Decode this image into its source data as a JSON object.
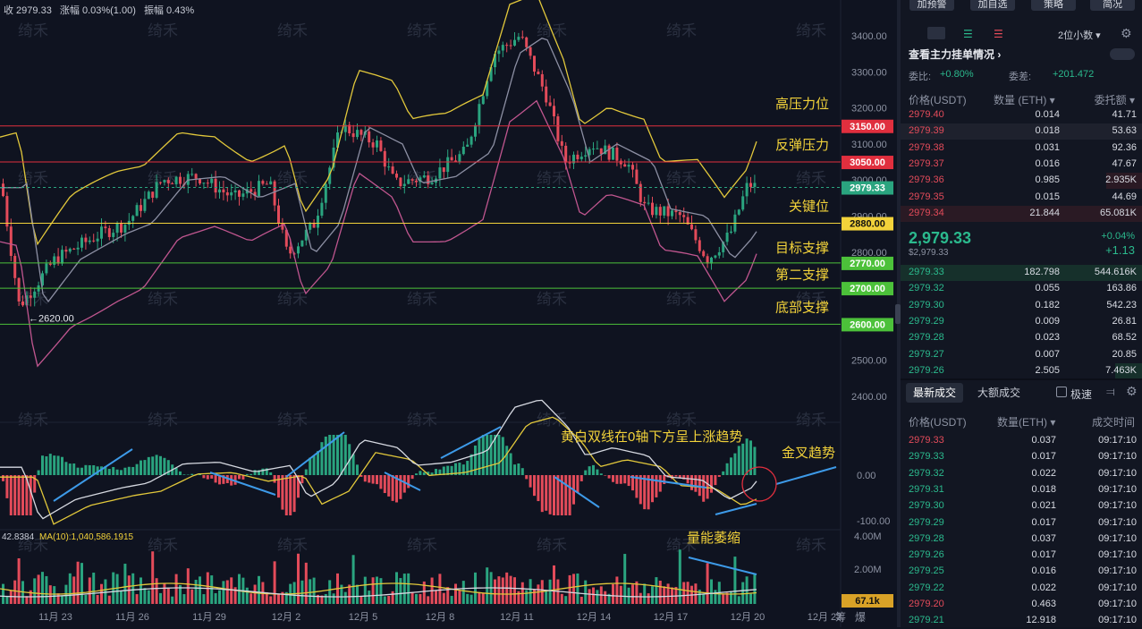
{
  "top_bar": {
    "close": "收 2979.33",
    "change": "涨幅 0.03%(1.00)",
    "amplitude": "振幅 0.43%"
  },
  "watermark": "绮禾",
  "price_axis": [
    "3400.00",
    "3300.00",
    "3200.00",
    "3100.00",
    "3000.00",
    "2900.00",
    "2800.00",
    "2700.00",
    "2600.00",
    "2500.00",
    "2400.00"
  ],
  "macd_axis": [
    "0.00",
    "-100.00"
  ],
  "vol_axis": [
    "4.00M",
    "2.00M"
  ],
  "date_axis": [
    "11月 23",
    "11月 26",
    "11月 29",
    "12月 2",
    "12月 5",
    "12月 8",
    "12月 11",
    "12月 14",
    "12月 17",
    "12月 20",
    "12月 23"
  ],
  "level_tags": [
    {
      "label": "3150.00",
      "color": "#e02f3e"
    },
    {
      "label": "3050.00",
      "color": "#e02f3e"
    },
    {
      "label": "2979.33",
      "color": "#2aa47f"
    },
    {
      "label": "2880.00",
      "color": "#f2d23a"
    },
    {
      "label": "2770.00",
      "color": "#4cc13a"
    },
    {
      "label": "2700.00",
      "color": "#4cc13a"
    },
    {
      "label": "2600.00",
      "color": "#4cc13a"
    },
    {
      "label": "67.1k",
      "color": "#d9a227"
    }
  ],
  "annotations": {
    "high_resistance": "高压力位",
    "rebound_resistance": "反弹压力",
    "key_level": "关键位",
    "target_support": "目标支撑",
    "second_support": "第二支撑",
    "bottom_support": "底部支撑",
    "macd_note": "黄白双线在0轴下方呈上涨趋势",
    "golden_cross": "金叉趋势",
    "volume_shrink": "量能萎缩",
    "low_marker": "←2620.00"
  },
  "volume_info": {
    "left": "42.8384",
    "ma": "MA(10):1,040,586.1915"
  },
  "chart_corner": {
    "left": "筹",
    "right": "爆"
  },
  "panel": {
    "buttons": [
      "加预警",
      "加自选",
      "策略",
      "简况"
    ],
    "depth_label": "2位小数",
    "main_force": "查看主力挂单情况",
    "ratio": "委比:",
    "ratio_val": "+0.80%",
    "diff": "委差:",
    "diff_val": "+201.472",
    "ob_headers": [
      "价格(USDT)",
      "数量 (ETH)",
      "委托额"
    ],
    "asks": [
      [
        "2979.40",
        "0.014",
        "41.71"
      ],
      [
        "2979.39",
        "0.018",
        "53.63"
      ],
      [
        "2979.38",
        "0.031",
        "92.36"
      ],
      [
        "2979.37",
        "0.016",
        "47.67"
      ],
      [
        "2979.36",
        "0.985",
        "2.935K"
      ],
      [
        "2979.35",
        "0.015",
        "44.69"
      ],
      [
        "2979.34",
        "21.844",
        "65.081K"
      ]
    ],
    "last_price": "2,979.33",
    "last_sub": "$2,979.33",
    "pct": "+0.04%",
    "chg": "+1.13",
    "bids": [
      [
        "2979.33",
        "182.798",
        "544.616K"
      ],
      [
        "2979.32",
        "0.055",
        "163.86"
      ],
      [
        "2979.30",
        "0.182",
        "542.23"
      ],
      [
        "2979.29",
        "0.009",
        "26.81"
      ],
      [
        "2979.28",
        "0.023",
        "68.52"
      ],
      [
        "2979.27",
        "0.007",
        "20.85"
      ],
      [
        "2979.26",
        "2.505",
        "7.463K"
      ]
    ],
    "trade_tabs": [
      "最新成交",
      "大额成交",
      "极速"
    ],
    "trade_headers": [
      "价格(USDT)",
      "数量(ETH)",
      "成交时间"
    ],
    "trades": [
      [
        "2979.33",
        "0.037",
        "09:17:10",
        "red"
      ],
      [
        "2979.33",
        "0.017",
        "09:17:10",
        "green"
      ],
      [
        "2979.32",
        "0.022",
        "09:17:10",
        "green"
      ],
      [
        "2979.31",
        "0.018",
        "09:17:10",
        "green"
      ],
      [
        "2979.30",
        "0.021",
        "09:17:10",
        "green"
      ],
      [
        "2979.29",
        "0.017",
        "09:17:10",
        "green"
      ],
      [
        "2979.28",
        "0.037",
        "09:17:10",
        "green"
      ],
      [
        "2979.26",
        "0.017",
        "09:17:10",
        "green"
      ],
      [
        "2979.25",
        "0.016",
        "09:17:10",
        "green"
      ],
      [
        "2979.22",
        "0.022",
        "09:17:10",
        "green"
      ],
      [
        "2979.20",
        "0.463",
        "09:17:10",
        "red"
      ],
      [
        "2979.21",
        "12.918",
        "09:17:10",
        "green"
      ]
    ]
  }
}
